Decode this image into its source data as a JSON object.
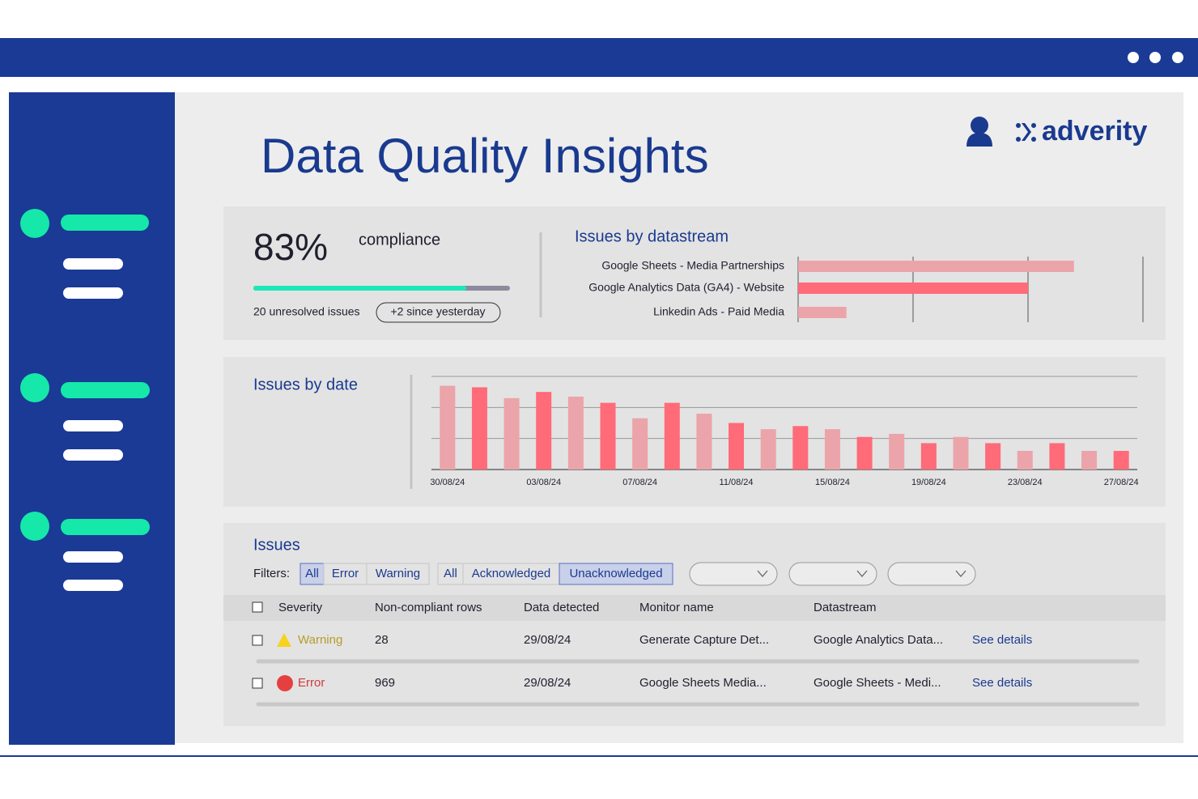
{
  "header": {
    "title": "Data Quality Insights",
    "brand": "adverity"
  },
  "compliance": {
    "value": 83,
    "value_label": "83%",
    "range": [
      0,
      100
    ],
    "label": "compliance",
    "unresolved": "20 unresolved issues",
    "since": "+2 since yesterday"
  },
  "chart_data": [
    {
      "type": "hbar",
      "title": "Issues by datastream",
      "categories": [
        "Google Sheets - Media Partnerships",
        "Google Analytics Data (GA4) - Website",
        "Linkedin Ads - Paid Media"
      ],
      "values": [
        2.4,
        2.0,
        0.42
      ],
      "colors": [
        "#eba4aa",
        "#ff6b78",
        "#eba4aa"
      ],
      "xlim": [
        0,
        3
      ],
      "xticks": [
        0,
        1,
        2,
        3
      ],
      "grid": true
    },
    {
      "type": "bar",
      "title": "Issues by date",
      "categories": [
        "30/08/24",
        null,
        null,
        "03/08/24",
        null,
        null,
        "07/08/24",
        null,
        null,
        "11/08/24",
        null,
        null,
        "15/08/24",
        null,
        null,
        "19/08/24",
        null,
        null,
        "23/08/24",
        null,
        null,
        "27/08/24"
      ],
      "values": [
        2.7,
        2.65,
        2.3,
        2.5,
        2.35,
        2.15,
        1.65,
        2.15,
        1.8,
        1.5,
        1.3,
        1.4,
        1.3,
        1.05,
        1.15,
        0.85,
        1.05,
        0.85,
        0.6,
        0.85,
        0.6,
        0.6
      ],
      "colors": [
        "#eba4aa",
        "#ff6b78"
      ],
      "ylim": [
        0,
        3
      ],
      "yticks": [
        0,
        1,
        2,
        3
      ],
      "grid": true
    }
  ],
  "issues": {
    "title": "Issues",
    "filters_label": "Filters:",
    "severity_filters": [
      "All",
      "Error",
      "Warning"
    ],
    "ack_filters": [
      "All",
      "Acknowledged",
      "Unacknowledged"
    ],
    "columns": [
      "Severity",
      "Non-compliant rows",
      "Data detected",
      "Monitor name",
      "Datastream"
    ],
    "rows": [
      [
        "Warning",
        28,
        "29/08/24",
        "Generate Capture Det...",
        "Google Analytics Data...",
        "See details"
      ],
      [
        "Error",
        969,
        "29/08/24",
        "Google Sheets Media...",
        "Google Sheets - Medi...",
        "See details"
      ]
    ]
  }
}
